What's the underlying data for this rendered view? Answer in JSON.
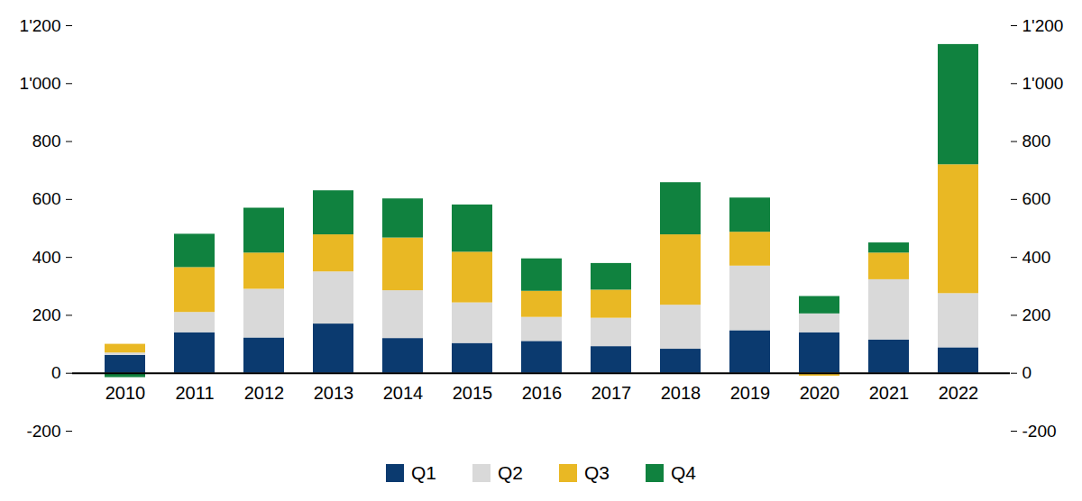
{
  "chart_data": {
    "type": "bar",
    "stacked": true,
    "grid": false,
    "legend": "bottom",
    "categories": [
      "2010",
      "2011",
      "2012",
      "2013",
      "2014",
      "2015",
      "2016",
      "2017",
      "2018",
      "2019",
      "2020",
      "2021",
      "2022"
    ],
    "series": [
      {
        "name": "Q1",
        "color": "#0b3a6f",
        "values": [
          62,
          140,
          122,
          170,
          120,
          103,
          110,
          92,
          83,
          147,
          140,
          115,
          88
        ]
      },
      {
        "name": "Q2",
        "color": "#d9d9d9",
        "values": [
          8,
          70,
          168,
          180,
          165,
          140,
          83,
          98,
          152,
          223,
          65,
          208,
          187
        ]
      },
      {
        "name": "Q3",
        "color": "#e9b824",
        "values": [
          30,
          155,
          125,
          128,
          182,
          175,
          90,
          97,
          243,
          117,
          -10,
          92,
          445
        ]
      },
      {
        "name": "Q4",
        "color": "#10823f",
        "values": [
          -15,
          115,
          155,
          152,
          135,
          163,
          112,
          92,
          180,
          118,
          60,
          35,
          415
        ]
      }
    ],
    "ylim": [
      -200,
      1200
    ],
    "yticks": [
      -200,
      0,
      200,
      400,
      600,
      800,
      {
        "value": 1000,
        "label": "1'000"
      },
      {
        "value": 1200,
        "label": "1'200"
      }
    ]
  }
}
